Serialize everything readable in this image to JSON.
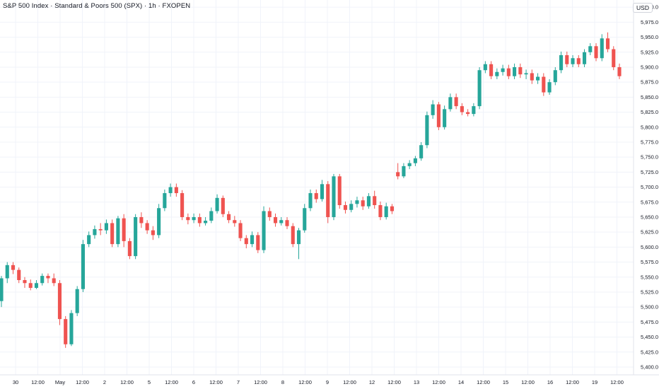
{
  "header": {
    "title": "S&P 500 Index · Standard & Poors 500 (SPX) · 1h · FXOPEN",
    "currency": "USD"
  },
  "colors": {
    "up": "#26a69a",
    "down": "#ef5350",
    "grid": "#f0f3fa",
    "axis": "#e0e3eb"
  },
  "chart_data": {
    "type": "candlestick",
    "ylim": [
      5387,
      6012
    ],
    "y_ticks": [
      5400,
      5425,
      5450,
      5475,
      5500,
      5525,
      5550,
      5575,
      5600,
      5625,
      5650,
      5675,
      5700,
      5725,
      5750,
      5775,
      5800,
      5825,
      5850,
      5875,
      5900,
      5925,
      5950,
      5975,
      6000
    ],
    "x_ticks": [
      "30",
      "12:00",
      "May",
      "12:00",
      "2",
      "12:00",
      "5",
      "12:00",
      "6",
      "12:00",
      "7",
      "12:00",
      "8",
      "12:00",
      "9",
      "12:00",
      "12",
      "12:00",
      "13",
      "12:00",
      "14",
      "12:00",
      "15",
      "12:00",
      "16",
      "12:00",
      "19",
      "12:00"
    ],
    "grid": true,
    "candles": [
      [
        5510,
        5548,
        5500,
        5552
      ],
      [
        5548,
        5570,
        5540,
        5575
      ],
      [
        5570,
        5562,
        5555,
        5575
      ],
      [
        5562,
        5545,
        5540,
        5566
      ],
      [
        5545,
        5540,
        5532,
        5550
      ],
      [
        5540,
        5532,
        5528,
        5546
      ],
      [
        5532,
        5540,
        5530,
        5545
      ],
      [
        5540,
        5552,
        5536,
        5556
      ],
      [
        5552,
        5548,
        5540,
        5556
      ],
      [
        5548,
        5540,
        5535,
        5556
      ],
      [
        5540,
        5480,
        5470,
        5545
      ],
      [
        5480,
        5438,
        5432,
        5485
      ],
      [
        5438,
        5490,
        5435,
        5495
      ],
      [
        5490,
        5530,
        5485,
        5535
      ],
      [
        5530,
        5605,
        5525,
        5612
      ],
      [
        5605,
        5620,
        5600,
        5626
      ],
      [
        5620,
        5630,
        5614,
        5636
      ],
      [
        5630,
        5628,
        5620,
        5640
      ],
      [
        5628,
        5640,
        5622,
        5646
      ],
      [
        5640,
        5605,
        5600,
        5646
      ],
      [
        5605,
        5648,
        5600,
        5652
      ],
      [
        5648,
        5610,
        5600,
        5655
      ],
      [
        5610,
        5585,
        5580,
        5615
      ],
      [
        5585,
        5650,
        5580,
        5655
      ],
      [
        5650,
        5640,
        5632,
        5658
      ],
      [
        5640,
        5628,
        5622,
        5645
      ],
      [
        5628,
        5620,
        5612,
        5635
      ],
      [
        5620,
        5665,
        5615,
        5672
      ],
      [
        5665,
        5690,
        5660,
        5696
      ],
      [
        5690,
        5700,
        5684,
        5706
      ],
      [
        5700,
        5690,
        5684,
        5706
      ],
      [
        5690,
        5650,
        5645,
        5695
      ],
      [
        5650,
        5645,
        5638,
        5656
      ],
      [
        5645,
        5650,
        5640,
        5656
      ],
      [
        5650,
        5640,
        5634,
        5656
      ],
      [
        5640,
        5644,
        5636,
        5650
      ],
      [
        5644,
        5660,
        5640,
        5666
      ],
      [
        5660,
        5682,
        5656,
        5688
      ],
      [
        5682,
        5655,
        5650,
        5686
      ],
      [
        5655,
        5645,
        5640,
        5660
      ],
      [
        5645,
        5640,
        5634,
        5652
      ],
      [
        5640,
        5615,
        5610,
        5645
      ],
      [
        5615,
        5605,
        5598,
        5620
      ],
      [
        5605,
        5620,
        5600,
        5626
      ],
      [
        5620,
        5595,
        5590,
        5625
      ],
      [
        5595,
        5660,
        5590,
        5668
      ],
      [
        5660,
        5650,
        5644,
        5666
      ],
      [
        5650,
        5640,
        5634,
        5656
      ],
      [
        5640,
        5645,
        5636,
        5650
      ],
      [
        5645,
        5635,
        5630,
        5650
      ],
      [
        5635,
        5605,
        5600,
        5640
      ],
      [
        5605,
        5628,
        5580,
        5632
      ],
      [
        5628,
        5665,
        5624,
        5672
      ],
      [
        5665,
        5690,
        5660,
        5696
      ],
      [
        5690,
        5680,
        5674,
        5696
      ],
      [
        5680,
        5705,
        5676,
        5712
      ],
      [
        5705,
        5650,
        5640,
        5710
      ],
      [
        5650,
        5718,
        5645,
        5722
      ],
      [
        5718,
        5670,
        5664,
        5722
      ],
      [
        5670,
        5662,
        5656,
        5676
      ],
      [
        5662,
        5672,
        5658,
        5678
      ],
      [
        5672,
        5678,
        5666,
        5684
      ],
      [
        5678,
        5668,
        5662,
        5684
      ],
      [
        5668,
        5685,
        5664,
        5690
      ],
      [
        5685,
        5670,
        5664,
        5694
      ],
      [
        5670,
        5650,
        5645,
        5676
      ],
      [
        5650,
        5668,
        5646,
        5674
      ],
      [
        5668,
        5660,
        5655,
        5672
      ],
      [
        5725,
        5718,
        5713,
        5740
      ],
      [
        5718,
        5735,
        5715,
        5740
      ],
      [
        5735,
        5740,
        5730,
        5745
      ],
      [
        5740,
        5748,
        5735,
        5752
      ],
      [
        5748,
        5770,
        5744,
        5775
      ],
      [
        5770,
        5820,
        5765,
        5826
      ],
      [
        5820,
        5838,
        5814,
        5845
      ],
      [
        5838,
        5800,
        5795,
        5842
      ],
      [
        5800,
        5830,
        5796,
        5836
      ],
      [
        5830,
        5850,
        5826,
        5856
      ],
      [
        5850,
        5835,
        5830,
        5856
      ],
      [
        5835,
        5825,
        5820,
        5840
      ],
      [
        5825,
        5822,
        5818,
        5830
      ],
      [
        5822,
        5835,
        5818,
        5840
      ],
      [
        5835,
        5895,
        5830,
        5900
      ],
      [
        5895,
        5905,
        5890,
        5910
      ],
      [
        5905,
        5885,
        5880,
        5910
      ],
      [
        5885,
        5892,
        5880,
        5898
      ],
      [
        5892,
        5898,
        5886,
        5904
      ],
      [
        5898,
        5885,
        5880,
        5904
      ],
      [
        5885,
        5900,
        5880,
        5906
      ],
      [
        5900,
        5888,
        5882,
        5906
      ],
      [
        5888,
        5890,
        5880,
        5896
      ],
      [
        5890,
        5878,
        5872,
        5896
      ],
      [
        5878,
        5884,
        5872,
        5890
      ],
      [
        5884,
        5858,
        5852,
        5890
      ],
      [
        5858,
        5875,
        5854,
        5880
      ],
      [
        5875,
        5895,
        5870,
        5900
      ],
      [
        5895,
        5920,
        5890,
        5926
      ],
      [
        5920,
        5905,
        5900,
        5926
      ],
      [
        5905,
        5915,
        5900,
        5920
      ],
      [
        5915,
        5905,
        5900,
        5920
      ],
      [
        5905,
        5925,
        5900,
        5930
      ],
      [
        5925,
        5935,
        5920,
        5940
      ],
      [
        5935,
        5915,
        5910,
        5940
      ],
      [
        5915,
        5948,
        5910,
        5955
      ],
      [
        5948,
        5930,
        5925,
        5958
      ],
      [
        5930,
        5900,
        5895,
        5935
      ],
      [
        5900,
        5885,
        5880,
        5906
      ]
    ]
  }
}
